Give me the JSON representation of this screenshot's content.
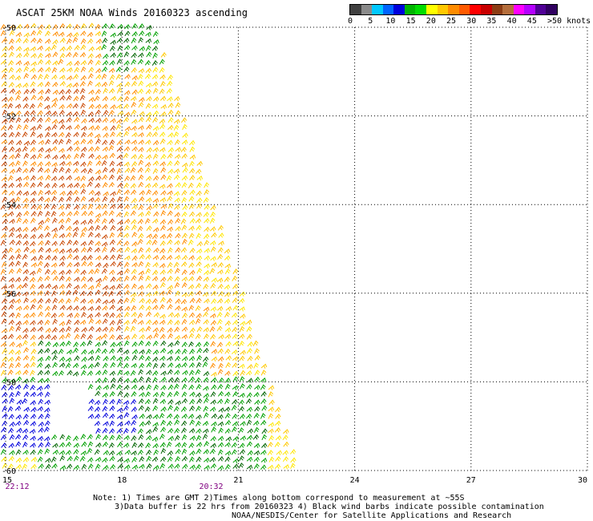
{
  "title": "ASCAT 25KM NOAA Winds 20160323 ascending",
  "colorbar": {
    "colors": [
      "#404040",
      "#8a8a8a",
      "#00c8ff",
      "#0064ff",
      "#0000dc",
      "#00b400",
      "#00dc00",
      "#ffff00",
      "#ffc800",
      "#ff8c00",
      "#ff5a00",
      "#ff0000",
      "#c80000",
      "#8c3c14",
      "#b46e3c",
      "#ff00ff",
      "#b400ff",
      "#500096",
      "#300060"
    ],
    "labels": [
      {
        "text": "0",
        "value": 0
      },
      {
        "text": "5",
        "value": 5
      },
      {
        "text": "10",
        "value": 10
      },
      {
        "text": "15",
        "value": 15
      },
      {
        "text": "20",
        "value": 20
      },
      {
        "text": "25",
        "value": 25
      },
      {
        "text": "30",
        "value": 30
      },
      {
        "text": "35",
        "value": 35
      },
      {
        "text": "40",
        "value": 40
      },
      {
        "text": "45",
        "value": 45
      },
      {
        "text": ">50 knots",
        "value": 50
      }
    ]
  },
  "map": {
    "lat_labels": [
      {
        "text": "-50",
        "lat": -50
      },
      {
        "text": "-52",
        "lat": -52
      },
      {
        "text": "-54",
        "lat": -54
      },
      {
        "text": "-56",
        "lat": -56
      },
      {
        "text": "-58",
        "lat": -58
      },
      {
        "text": "-60",
        "lat": -60
      }
    ],
    "lon_labels": [
      {
        "text": "15",
        "lon": 15
      },
      {
        "text": "18",
        "lon": 18
      },
      {
        "text": "21",
        "lon": 21
      },
      {
        "text": "24",
        "lon": 24
      },
      {
        "text": "27",
        "lon": 27
      },
      {
        "text": "30",
        "lon": 30
      }
    ],
    "time_labels": [
      {
        "text": "22:12",
        "lon": 15.3
      },
      {
        "text": "20:32",
        "lon": 20.3
      }
    ],
    "lat_range": [
      -60,
      -50
    ],
    "lon_range": [
      15,
      30
    ],
    "barb_colors": {
      "orange_brown": "#c84600",
      "orange": "#ff8c00",
      "gold": "#ffc800",
      "yellow": "#ffe600",
      "green": "#00a000",
      "dark_green": "#006400",
      "blue": "#0000dc"
    }
  },
  "notes": {
    "line1": "Note: 1) Times are GMT 2)Times along bottom correspond to measurement at ~55S",
    "line2": "3)Data buffer is 22 hrs from 20160323 4) Black wind barbs indicate possible contamination",
    "line3": "NOAA/NESDIS/Center for Satellite Applications and Research"
  }
}
